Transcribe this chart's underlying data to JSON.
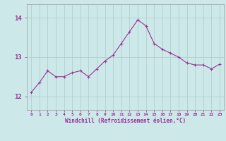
{
  "x": [
    0,
    1,
    2,
    3,
    4,
    5,
    6,
    7,
    8,
    9,
    10,
    11,
    12,
    13,
    14,
    15,
    16,
    17,
    18,
    19,
    20,
    21,
    22,
    23
  ],
  "y": [
    12.1,
    12.35,
    12.65,
    12.5,
    12.5,
    12.6,
    12.65,
    12.5,
    12.7,
    12.9,
    13.05,
    13.35,
    13.65,
    13.95,
    13.8,
    13.35,
    13.2,
    13.1,
    13.0,
    12.85,
    12.8,
    12.8,
    12.7,
    12.82
  ],
  "line_color": "#993399",
  "marker": "+",
  "bg_color": "#cce8e8",
  "grid_color": "#aacccc",
  "ylabel_ticks": [
    12,
    13,
    14
  ],
  "xlabel": "Windchill (Refroidissement éolien,°C)",
  "ylim": [
    11.65,
    14.35
  ],
  "xlim": [
    -0.5,
    23.5
  ],
  "tick_color": "#993399",
  "label_color": "#993399",
  "spine_color": "#999999",
  "figsize": [
    3.2,
    2.0
  ],
  "dpi": 100
}
